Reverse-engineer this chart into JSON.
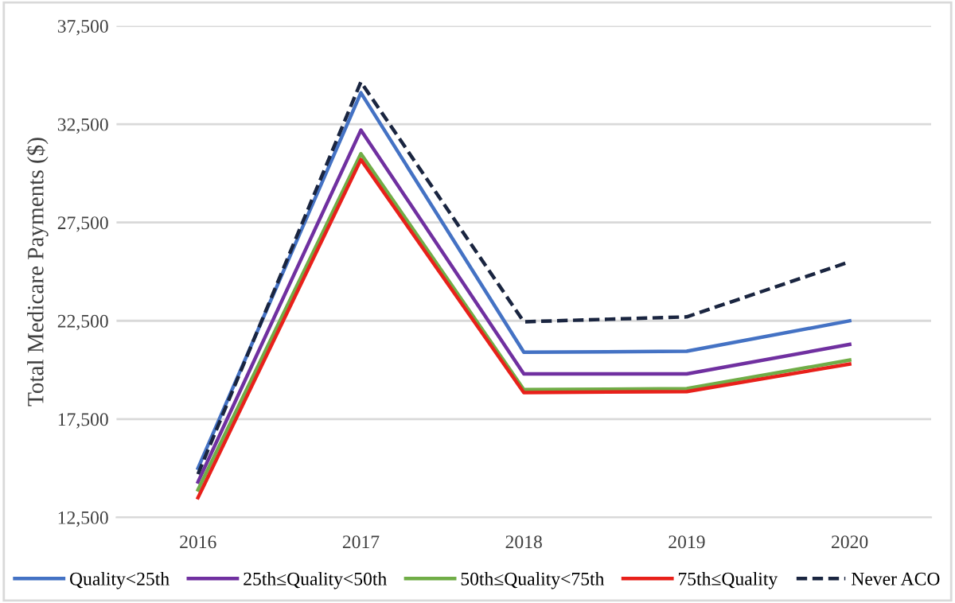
{
  "chart_data": {
    "type": "line",
    "ylabel": "Total Medicare Payments ($)",
    "categories": [
      "2016",
      "2017",
      "2018",
      "2019",
      "2020"
    ],
    "series": [
      {
        "name": "Quality<25th",
        "color": "#4472c4",
        "values": [
          15000,
          34100,
          20900,
          20950,
          22500
        ]
      },
      {
        "name": "25th≤Quality<50th",
        "color": "#7030a0",
        "values": [
          14300,
          32200,
          19800,
          19800,
          21300
        ]
      },
      {
        "name": "50th≤Quality<75th",
        "color": "#70ad47",
        "values": [
          13900,
          31000,
          19000,
          19050,
          20500
        ]
      },
      {
        "name": "75th≤Quality",
        "color": "#e8201a",
        "values": [
          13500,
          30700,
          18850,
          18900,
          20300
        ]
      },
      {
        "name": "Never ACO",
        "color": "#1a2540",
        "line_style": "dashed",
        "values": [
          14700,
          34650,
          22450,
          22700,
          25500
        ]
      }
    ],
    "ylim": [
      12500,
      37500
    ],
    "yticks": [
      {
        "value": 12500,
        "label": "12,500"
      },
      {
        "value": 17500,
        "label": "17,500"
      },
      {
        "value": 22500,
        "label": "22,500"
      },
      {
        "value": 27500,
        "label": "27,500"
      },
      {
        "value": 32500,
        "label": "32,500"
      },
      {
        "value": 37500,
        "label": "37,500"
      }
    ],
    "grid": "y",
    "legend": "bottom",
    "marker": "none"
  }
}
